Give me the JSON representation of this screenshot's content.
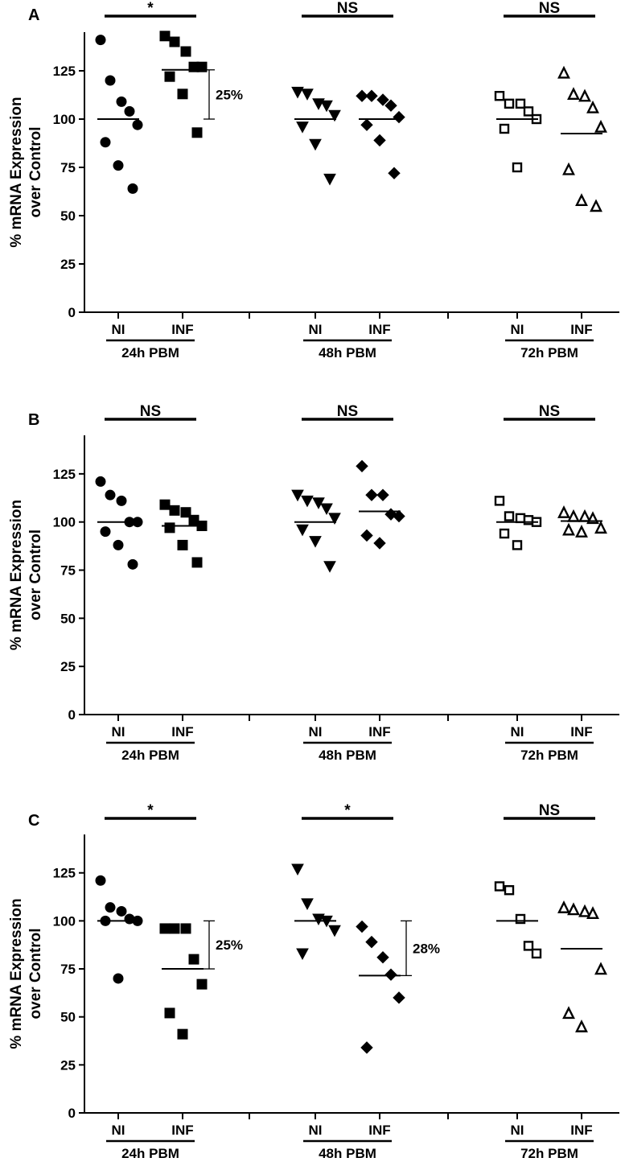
{
  "figure": {
    "panels": [
      "A",
      "B",
      "C"
    ]
  },
  "chart_data": [
    {
      "type": "scatter",
      "panel": "A",
      "ylabel_line1": "% mRNA Expression",
      "ylabel_line2": "over Control",
      "ylim": [
        0,
        145
      ],
      "yticks": [
        0,
        25,
        50,
        75,
        100,
        125
      ],
      "groups": [
        {
          "label": "24h PBM",
          "significance": "*",
          "percent_change": "25%",
          "series": [
            {
              "name": "NI",
              "marker": "circle",
              "filled": true,
              "mean": 100,
              "values": [
                141,
                120,
                109,
                104,
                97,
                88,
                76,
                64
              ]
            },
            {
              "name": "INF",
              "marker": "square",
              "filled": true,
              "mean": 125.5,
              "values": [
                143,
                140,
                135,
                127,
                127,
                122,
                113,
                93
              ]
            }
          ]
        },
        {
          "label": "48h PBM",
          "significance": "NS",
          "percent_change": "",
          "series": [
            {
              "name": "NI",
              "marker": "triangle-down",
              "filled": true,
              "mean": 100,
              "values": [
                114,
                113,
                108,
                107,
                102,
                96,
                87,
                69
              ]
            },
            {
              "name": "INF",
              "marker": "diamond",
              "filled": true,
              "mean": 100,
              "values": [
                112,
                112,
                110,
                107,
                101,
                97,
                89,
                72
              ]
            }
          ]
        },
        {
          "label": "72h PBM",
          "significance": "NS",
          "percent_change": "",
          "series": [
            {
              "name": "NI",
              "marker": "square",
              "filled": false,
              "mean": 100,
              "values": [
                112,
                108,
                108,
                104,
                100,
                95,
                75
              ]
            },
            {
              "name": "INF",
              "marker": "triangle-up",
              "filled": false,
              "mean": 92.5,
              "values": [
                124,
                113,
                112,
                106,
                96,
                74,
                58,
                55
              ]
            }
          ]
        }
      ]
    },
    {
      "type": "scatter",
      "panel": "B",
      "ylabel_line1": "% mRNA Expression",
      "ylabel_line2": "over Control",
      "ylim": [
        0,
        145
      ],
      "yticks": [
        0,
        25,
        50,
        75,
        100,
        125
      ],
      "groups": [
        {
          "label": "24h PBM",
          "significance": "NS",
          "percent_change": "",
          "series": [
            {
              "name": "NI",
              "marker": "circle",
              "filled": true,
              "mean": 100,
              "values": [
                121,
                114,
                111,
                100,
                100,
                95,
                88,
                78
              ]
            },
            {
              "name": "INF",
              "marker": "square",
              "filled": true,
              "mean": 98,
              "values": [
                109,
                106,
                105,
                101,
                98,
                97,
                88,
                79
              ]
            }
          ]
        },
        {
          "label": "48h PBM",
          "significance": "NS",
          "percent_change": "",
          "series": [
            {
              "name": "NI",
              "marker": "triangle-down",
              "filled": true,
              "mean": 100,
              "values": [
                114,
                111,
                110,
                107,
                102,
                96,
                90,
                77
              ]
            },
            {
              "name": "INF",
              "marker": "diamond",
              "filled": true,
              "mean": 105.5,
              "values": [
                129,
                114,
                114,
                104,
                103,
                93,
                89
              ]
            }
          ]
        },
        {
          "label": "72h PBM",
          "significance": "NS",
          "percent_change": "",
          "series": [
            {
              "name": "NI",
              "marker": "square",
              "filled": false,
              "mean": 100,
              "values": [
                111,
                103,
                102,
                101,
                100,
                94,
                88
              ]
            },
            {
              "name": "INF",
              "marker": "triangle-up",
              "filled": false,
              "mean": 100.5,
              "values": [
                105,
                103,
                103,
                102,
                97,
                96,
                95
              ]
            }
          ]
        }
      ]
    },
    {
      "type": "scatter",
      "panel": "C",
      "ylabel_line1": "% mRNA Expression",
      "ylabel_line2": "over Control",
      "ylim": [
        0,
        145
      ],
      "yticks": [
        0,
        25,
        50,
        75,
        100,
        125
      ],
      "groups": [
        {
          "label": "24h PBM",
          "significance": "*",
          "percent_change": "25%",
          "series": [
            {
              "name": "NI",
              "marker": "circle",
              "filled": true,
              "mean": 100,
              "values": [
                121,
                107,
                105,
                101,
                100,
                100,
                70
              ]
            },
            {
              "name": "INF",
              "marker": "square",
              "filled": true,
              "mean": 75,
              "values": [
                96,
                96,
                96,
                80,
                67,
                52,
                41
              ]
            }
          ]
        },
        {
          "label": "48h PBM",
          "significance": "*",
          "percent_change": "28%",
          "series": [
            {
              "name": "NI",
              "marker": "triangle-down",
              "filled": true,
              "mean": 100,
              "values": [
                127,
                109,
                101,
                100,
                95,
                83
              ]
            },
            {
              "name": "INF",
              "marker": "diamond",
              "filled": true,
              "mean": 71.5,
              "values": [
                97,
                89,
                81,
                72,
                60,
                34
              ]
            }
          ]
        },
        {
          "label": "72h PBM",
          "significance": "NS",
          "percent_change": "",
          "series": [
            {
              "name": "NI",
              "marker": "square",
              "filled": false,
              "mean": 100,
              "values": [
                118,
                116,
                101,
                87,
                83
              ]
            },
            {
              "name": "INF",
              "marker": "triangle-up",
              "filled": false,
              "mean": 85.5,
              "values": [
                107,
                106,
                105,
                104,
                75,
                52,
                45
              ]
            }
          ]
        }
      ]
    }
  ]
}
